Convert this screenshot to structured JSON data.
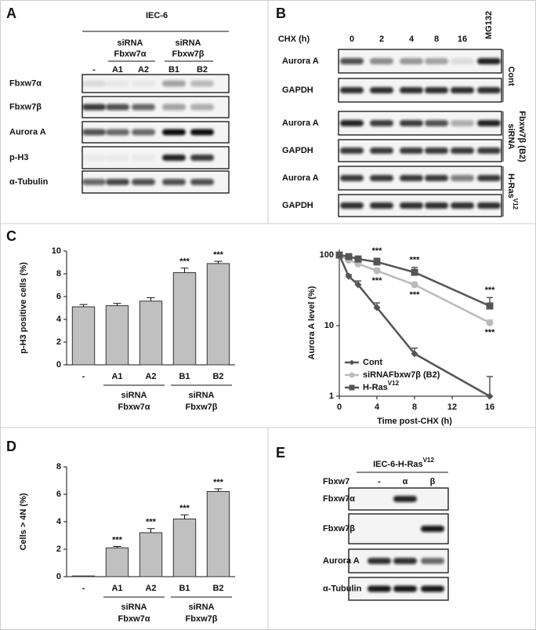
{
  "panel_labels": [
    "A",
    "B",
    "C",
    "D",
    "E"
  ],
  "blot_a": {
    "cell_line": "IEC-6",
    "groups": [
      {
        "line1": "siRNA",
        "line2": "Fbxw7α"
      },
      {
        "line1": "siRNA",
        "line2": "Fbxw7β"
      }
    ],
    "lanes": [
      "-",
      "A1",
      "A2",
      "B1",
      "B2"
    ],
    "rows": [
      "Fbxw7α",
      "Fbxw7β",
      "Aurora A",
      "p-H3",
      "α-Tubulin"
    ]
  },
  "blot_b": {
    "lane_title": "CHX (h)",
    "lanes": [
      "0",
      "2",
      "4",
      "8",
      "16",
      "MG132"
    ],
    "rows": [
      "Aurora A",
      "GAPDH",
      "Aurora A",
      "GAPDH",
      "Aurora A",
      "GAPDH"
    ],
    "conditions": [
      {
        "line1": "Cont"
      },
      {
        "line1": "siRNA",
        "line2": "Fbxw7β (B2)"
      },
      {
        "line1": "H-Ras",
        "superscript": "V12"
      }
    ]
  },
  "blot_e": {
    "cell_line": "IEC-6-H-Ras",
    "cell_line_superscript": "V12",
    "lane_title": "Fbxw7",
    "lanes": [
      "-",
      "α",
      "β"
    ],
    "rows": [
      "Fbxw7α",
      "Fbxw7β",
      "Aurora A",
      "α-Tubulin"
    ]
  },
  "chart_data": [
    {
      "type": "bar",
      "y_label": "p-H3 positive cells (%)",
      "categories": [
        "-",
        "A1",
        "A2",
        "B1",
        "B2"
      ],
      "values": [
        5.1,
        5.2,
        5.6,
        8.1,
        8.9
      ],
      "errors": [
        0.2,
        0.2,
        0.3,
        0.4,
        0.2
      ],
      "significance": [
        null,
        null,
        null,
        "***",
        "***"
      ],
      "groups": [
        {
          "line1": "siRNA",
          "line2": "Fbxw7α"
        },
        {
          "line1": "siRNA",
          "line2": "Fbxw7β"
        }
      ],
      "color": "#c0c0c0",
      "ylim": [
        0,
        10
      ],
      "yticks": [
        0,
        2,
        4,
        6,
        8,
        10
      ]
    },
    {
      "type": "line",
      "x_label": "Time post-CHX  (h)",
      "y_label": "Aurora A level (%)",
      "x": [
        0,
        1,
        2,
        4,
        8,
        16
      ],
      "log_y": true,
      "legend": "lower left",
      "series": [
        {
          "name": "Cont",
          "color": "#555555",
          "marker": "diamond",
          "values": [
            100,
            50,
            38,
            18,
            4,
            1
          ],
          "errors": [
            0,
            3,
            5,
            3,
            0.8,
            0.9
          ],
          "significance": [
            null,
            null,
            null,
            null,
            null,
            null
          ]
        },
        {
          "name": "siRNAFbxw7β (B2)",
          "color": "#bbbbbb",
          "marker": "circle",
          "values": [
            100,
            85,
            75,
            60,
            38,
            11
          ],
          "errors": [
            0,
            3,
            5,
            5,
            3,
            1
          ],
          "significance": [
            null,
            null,
            null,
            "***",
            "***",
            "***"
          ]
        },
        {
          "name": "H-Ras",
          "name_superscript": "V12",
          "color": "#555555",
          "marker": "square",
          "values": [
            100,
            95,
            88,
            80,
            57,
            19
          ],
          "errors": [
            0,
            5,
            8,
            10,
            10,
            6
          ],
          "significance": [
            null,
            null,
            null,
            "***",
            "***",
            "***"
          ]
        }
      ],
      "xlim": [
        0,
        16
      ],
      "xticks": [
        0,
        4,
        8,
        12,
        16
      ],
      "ylim": [
        1,
        120
      ],
      "yticks": [
        1,
        10,
        100
      ]
    },
    {
      "type": "bar",
      "y_label": "Cells > 4N (%)",
      "categories": [
        "-",
        "A1",
        "A2",
        "B1",
        "B2"
      ],
      "values": [
        0.05,
        2.1,
        3.2,
        4.2,
        6.2
      ],
      "errors": [
        0,
        0.1,
        0.3,
        0.3,
        0.2
      ],
      "significance": [
        null,
        "***",
        "***",
        "***",
        "***"
      ],
      "groups": [
        {
          "line1": "siRNA",
          "line2": "Fbxw7α"
        },
        {
          "line1": "siRNA",
          "line2": "Fbxw7β"
        }
      ],
      "color": "#c0c0c0",
      "ylim": [
        0,
        8
      ],
      "yticks": [
        0,
        2,
        4,
        6,
        8
      ]
    }
  ]
}
